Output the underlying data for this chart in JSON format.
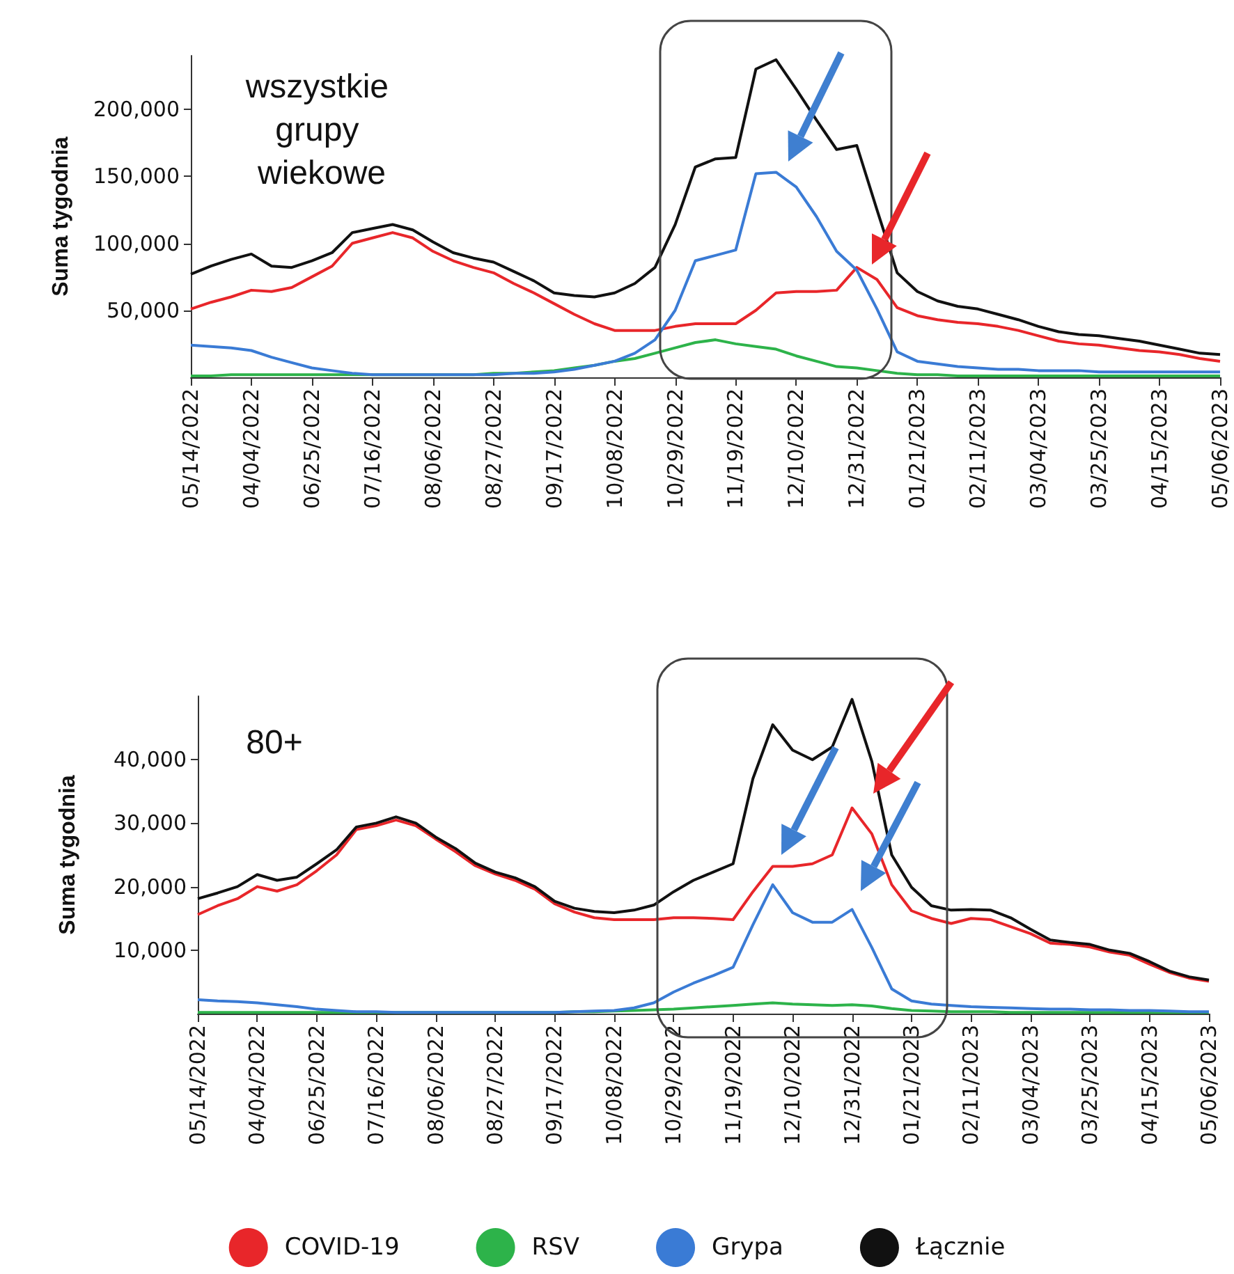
{
  "chart_data": [
    {
      "type": "line",
      "title": "wszystkie grupy wiekowe",
      "ylabel": "Suma tygodnia",
      "categories": [
        "05/14/2022",
        null,
        null,
        "04/04/2022",
        null,
        null,
        "06/25/2022",
        null,
        null,
        "07/16/2022",
        null,
        null,
        "08/06/2022",
        null,
        null,
        "08/27/2022",
        null,
        null,
        "09/17/2022",
        null,
        null,
        "10/08/2022",
        null,
        null,
        "10/29/2022",
        null,
        null,
        "11/19/2022",
        null,
        null,
        "12/10/2022",
        null,
        null,
        "12/31/2022",
        null,
        null,
        "01/21/2023",
        null,
        null,
        "02/11/2023",
        null,
        null,
        "03/04/2023",
        null,
        null,
        "03/25/2023",
        null,
        null,
        "04/15/2023",
        null,
        null,
        "05/06/2023"
      ],
      "ylim": [
        0,
        240000
      ],
      "yticks": [
        {
          "value": 50000,
          "label": "50,000"
        },
        {
          "value": 100000,
          "label": "100,000"
        },
        {
          "value": 150000,
          "label": "150,000"
        },
        {
          "value": 200000,
          "label": "200,000"
        }
      ],
      "grid": false,
      "legend": false,
      "series": [
        {
          "color": "#e8262a",
          "values": [
            51000,
            56000,
            60000,
            65000,
            64000,
            67000,
            75000,
            83000,
            100000,
            104000,
            108000,
            104000,
            94000,
            87000,
            82000,
            78000,
            70000,
            63000,
            55000,
            47000,
            40000,
            35000,
            35000,
            35000,
            38000,
            40000,
            40000,
            40000,
            50000,
            63000,
            64000,
            64000,
            65000,
            82000,
            73000,
            52000,
            46000,
            43000,
            41000,
            40000,
            38000,
            35000,
            31000,
            27000,
            25000,
            24000,
            22000,
            20000,
            19000,
            17000,
            14000,
            12000
          ]
        },
        {
          "color": "#2db34a",
          "values": [
            1000,
            1000,
            2000,
            2000,
            2000,
            2000,
            2000,
            2000,
            2000,
            2000,
            2000,
            2000,
            2000,
            2000,
            2000,
            3000,
            3000,
            4000,
            5000,
            7000,
            9000,
            12000,
            14000,
            18000,
            22000,
            26000,
            28000,
            25000,
            23000,
            21000,
            16000,
            12000,
            8000,
            7000,
            5000,
            3000,
            2000,
            2000,
            1000,
            1000,
            1000,
            1000,
            1000,
            1000,
            1000,
            1000,
            1000,
            1000,
            1000,
            1000,
            1000,
            1000
          ]
        },
        {
          "color": "#3a7bd5",
          "values": [
            24000,
            23000,
            22000,
            20000,
            15000,
            11000,
            7000,
            5000,
            3000,
            2000,
            2000,
            2000,
            2000,
            2000,
            2000,
            2000,
            3000,
            3000,
            4000,
            6000,
            9000,
            12000,
            18000,
            28000,
            50000,
            87000,
            91000,
            95000,
            152000,
            153000,
            142000,
            120000,
            94000,
            80000,
            51000,
            19000,
            12000,
            10000,
            8000,
            7000,
            6000,
            6000,
            5000,
            5000,
            5000,
            4000,
            4000,
            4000,
            4000,
            4000,
            4000,
            4000
          ]
        },
        {
          "color": "#111111",
          "values": [
            77000,
            83000,
            88000,
            92000,
            83000,
            82000,
            87000,
            93000,
            108000,
            111000,
            114000,
            110000,
            101000,
            93000,
            89000,
            86000,
            79000,
            72000,
            63000,
            61000,
            60000,
            63000,
            70000,
            82000,
            114000,
            157000,
            163000,
            164000,
            230000,
            237000,
            215000,
            192000,
            170000,
            173000,
            125000,
            78000,
            64000,
            57000,
            53000,
            51000,
            47000,
            43000,
            38000,
            34000,
            32000,
            31000,
            29000,
            27000,
            24000,
            21000,
            18000,
            17000
          ]
        }
      ]
    },
    {
      "type": "line",
      "title": "80+",
      "ylabel": "Suma tygodnia",
      "categories": [
        "05/14/2022",
        null,
        null,
        "04/04/2022",
        null,
        null,
        "06/25/2022",
        null,
        null,
        "07/16/2022",
        null,
        null,
        "08/06/2022",
        null,
        null,
        "08/27/2022",
        null,
        null,
        "09/17/2022",
        null,
        null,
        "10/08/2022",
        null,
        null,
        "10/29/2022",
        null,
        null,
        "11/19/2022",
        null,
        null,
        "12/10/2022",
        null,
        null,
        "12/31/2022",
        null,
        null,
        "01/21/2023",
        null,
        null,
        "02/11/2023",
        null,
        null,
        "03/04/2023",
        null,
        null,
        "03/25/2023",
        null,
        null,
        "04/15/2023",
        null,
        null,
        "05/06/2023"
      ],
      "ylim": [
        0,
        50000
      ],
      "yticks": [
        {
          "value": 10000,
          "label": "10,000"
        },
        {
          "value": 20000,
          "label": "20,000"
        },
        {
          "value": 30000,
          "label": "30,000"
        },
        {
          "value": 40000,
          "label": "40,000"
        }
      ],
      "grid": false,
      "legend": "bottom",
      "series": [
        {
          "name": "COVID-19",
          "color": "#e8262a",
          "values": [
            15600,
            17000,
            18100,
            20000,
            19300,
            20300,
            22500,
            25000,
            29000,
            29600,
            30500,
            29600,
            27500,
            25500,
            23300,
            22000,
            21000,
            19600,
            17300,
            16000,
            15100,
            14800,
            14800,
            14800,
            15100,
            15100,
            15000,
            14800,
            19200,
            23200,
            23200,
            23600,
            25000,
            32400,
            28300,
            20300,
            16200,
            15000,
            14200,
            15000,
            14800,
            13700,
            12600,
            11100,
            10900,
            10500,
            9700,
            9200,
            7800,
            6500,
            5600,
            5100
          ]
        },
        {
          "name": "RSV",
          "color": "#2db34a",
          "values": [
            200,
            200,
            200,
            200,
            200,
            200,
            200,
            200,
            200,
            200,
            200,
            200,
            200,
            200,
            200,
            200,
            200,
            200,
            200,
            300,
            300,
            400,
            500,
            600,
            700,
            900,
            1100,
            1300,
            1500,
            1700,
            1500,
            1400,
            1300,
            1400,
            1200,
            800,
            500,
            400,
            300,
            300,
            300,
            200,
            200,
            200,
            200,
            200,
            200,
            200,
            200,
            200,
            200,
            200
          ]
        },
        {
          "name": "Grypa",
          "color": "#3a7bd5",
          "values": [
            2200,
            2000,
            1900,
            1700,
            1400,
            1100,
            700,
            500,
            300,
            300,
            200,
            200,
            200,
            200,
            200,
            200,
            200,
            200,
            200,
            300,
            400,
            500,
            900,
            1700,
            3400,
            4800,
            6000,
            7300,
            14000,
            20300,
            15900,
            14400,
            14400,
            16400,
            10400,
            3900,
            2000,
            1500,
            1300,
            1100,
            1000,
            900,
            800,
            700,
            700,
            600,
            600,
            500,
            500,
            400,
            300,
            300
          ]
        },
        {
          "name": "Łącznie",
          "color": "#111111",
          "values": [
            18100,
            19000,
            20000,
            21900,
            21000,
            21500,
            23600,
            25800,
            29400,
            30000,
            31000,
            30000,
            27800,
            26000,
            23700,
            22300,
            21400,
            20000,
            17700,
            16600,
            16100,
            15900,
            16300,
            17100,
            19200,
            21000,
            22300,
            23600,
            37000,
            45500,
            41500,
            40000,
            42000,
            49500,
            39700,
            25000,
            19900,
            17000,
            16300,
            16400,
            16300,
            15100,
            13300,
            11600,
            11200,
            10900,
            10000,
            9500,
            8200,
            6700,
            5800,
            5300
          ]
        }
      ]
    }
  ]
}
